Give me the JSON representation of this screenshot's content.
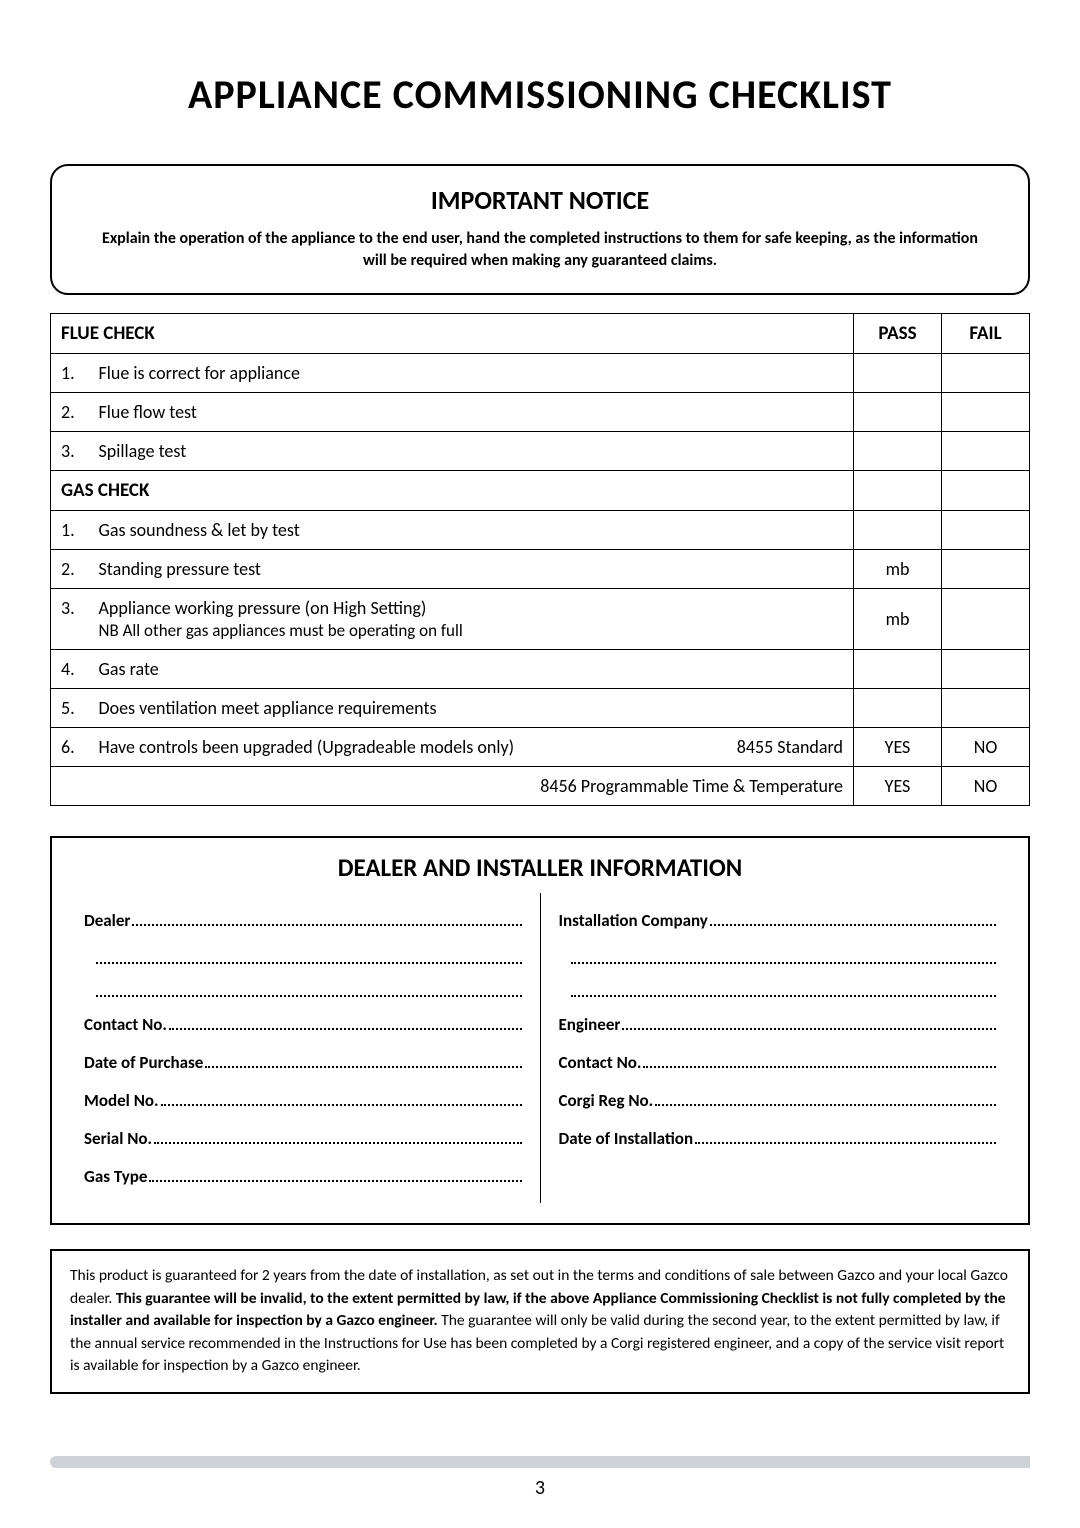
{
  "title": "APPLIANCE COMMISSIONING CHECKLIST",
  "notice": {
    "heading": "IMPORTANT NOTICE",
    "text": "Explain the operation of the appliance to the end user, hand the completed instructions to them for safe keeping, as the information will be required when making any guaranteed claims."
  },
  "table": {
    "headers": {
      "pass": "PASS",
      "fail": "FAIL"
    },
    "flue": {
      "heading": "FLUE CHECK",
      "rows": [
        {
          "n": "1.",
          "text": "Flue is correct for appliance",
          "pass": "",
          "fail": ""
        },
        {
          "n": "2.",
          "text": "Flue flow test",
          "pass": "",
          "fail": ""
        },
        {
          "n": "3.",
          "text": "Spillage test",
          "pass": "",
          "fail": ""
        }
      ]
    },
    "gas": {
      "heading": "GAS CHECK",
      "rows": [
        {
          "n": "1.",
          "text": "Gas soundness & let by test",
          "pass": "",
          "fail": ""
        },
        {
          "n": "2.",
          "text": "Standing pressure test",
          "pass": "mb",
          "fail": ""
        },
        {
          "n": "3.",
          "text": "Appliance working pressure (on High Setting)",
          "text2": "NB All other gas appliances must be operating on full",
          "pass": "mb",
          "fail": ""
        },
        {
          "n": "4.",
          "text": "Gas rate",
          "pass": "",
          "fail": ""
        },
        {
          "n": "5.",
          "text": "Does ventilation meet appliance requirements",
          "pass": "",
          "fail": ""
        },
        {
          "n": "6.",
          "text": "Have controls been upgraded (Upgradeable models only)",
          "right": "8455 Standard",
          "pass": "YES",
          "fail": "NO"
        }
      ],
      "extra": {
        "right": "8456 Programmable Time & Temperature",
        "pass": "YES",
        "fail": "NO"
      }
    }
  },
  "dealer": {
    "heading": "DEALER AND INSTALLER INFORMATION",
    "left": {
      "dealer": "Dealer",
      "contact": "Contact No.",
      "purchase": "Date of Purchase",
      "model": "Model No.",
      "serial": "Serial No.",
      "gastype": "Gas Type"
    },
    "right": {
      "company": "Installation Company",
      "engineer": "Engineer",
      "contact": "Contact No.",
      "corgi": "Corgi Reg No.",
      "install": "Date of Installation"
    }
  },
  "guarantee": {
    "p1a": "This product is guaranteed for 2 years from the date of installation, as set out in the terms and conditions of sale between Gazco and your local Gazco dealer. ",
    "p1b": "This guarantee will be invalid, to the extent permitted by law, if the above Appliance Commissioning Checklist is not fully completed by the installer and available for inspection by a Gazco engineer.",
    "p1c": " The guarantee will only be valid during the second year, to the extent permitted by law, if the annual service recommended in the Instructions for Use has been completed by a Corgi registered engineer, and a copy of the service visit report is available for inspection by a Gazco engineer."
  },
  "page_number": "3",
  "colors": {
    "footer_bar": "#cfd2d6"
  }
}
